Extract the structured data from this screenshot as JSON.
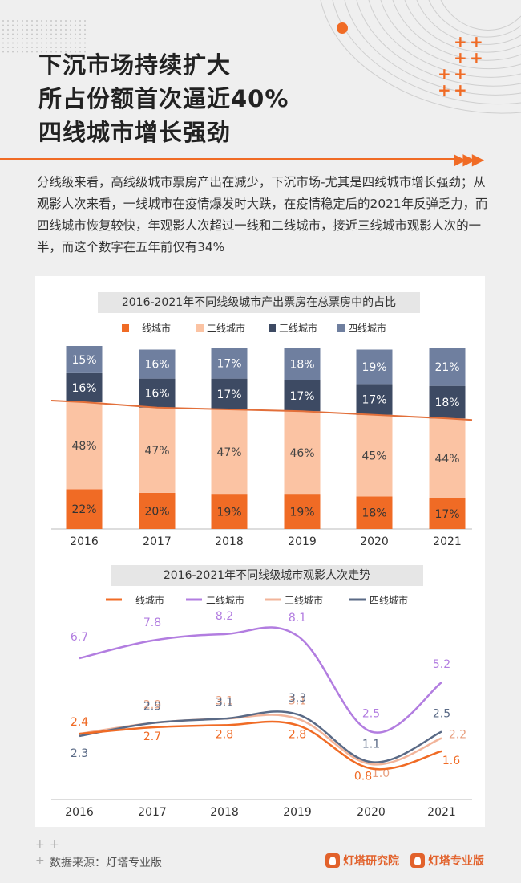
{
  "header": {
    "title_lines": [
      "下沉市场持续扩大",
      "所占份额首次逼近40%",
      "四线城市增长强劲"
    ]
  },
  "intro": {
    "text": "分线级来看，高线级城市票房产出在减少，下沉市场-尤其是四线城市增长强劲；从观影人次来看，一线城市在疫情爆发时大跌，在疫情稳定后的2021年反弹乏力，而四线城市恢复较快，年观影人次超过一线和二线城市，接近三线城市观影人次的一半，而这个数字在五年前仅有34%"
  },
  "colors": {
    "accent": "#f06b25",
    "tier1": "#f06b25",
    "tier2_bar": "#fbc3a3",
    "tier3_bar": "#3d4a63",
    "tier4_bar": "#6f7f9f",
    "tier2_line": "#b27de0",
    "tier3_line": "#f2b49a",
    "tier4_line": "#5a6a86",
    "divider_line": "#e26f3a"
  },
  "chart_data": [
    {
      "type": "bar",
      "stacked": true,
      "title": "2016-2021年不同线级城市产出票房在总票房中的占比",
      "categories": [
        "2016",
        "2017",
        "2018",
        "2019",
        "2020",
        "2021"
      ],
      "series": [
        {
          "name": "一线城市",
          "values": [
            22,
            20,
            19,
            19,
            18,
            17
          ],
          "color": "#f06b25"
        },
        {
          "name": "二线城市",
          "values": [
            48,
            47,
            47,
            46,
            45,
            44
          ],
          "color": "#fbc3a3"
        },
        {
          "name": "三线城市",
          "values": [
            16,
            16,
            17,
            17,
            17,
            18
          ],
          "color": "#3d4a63"
        },
        {
          "name": "四线城市",
          "values": [
            15,
            16,
            17,
            18,
            19,
            21
          ],
          "color": "#6f7f9f"
        }
      ],
      "value_suffix": "%",
      "ylim": [
        0,
        101
      ],
      "legend": "top",
      "annotation": "line connecting the top of the 二线城市 segments (一线+二线 share)"
    },
    {
      "type": "line",
      "title": "2016-2021年不同线级城市观影人次走势",
      "x": [
        "2016",
        "2017",
        "2018",
        "2019",
        "2020",
        "2021"
      ],
      "series": [
        {
          "name": "一线城市",
          "values": [
            2.4,
            2.7,
            2.8,
            2.8,
            0.8,
            1.6
          ],
          "color": "#f06b25"
        },
        {
          "name": "二线城市",
          "values": [
            6.7,
            7.8,
            8.2,
            8.1,
            2.5,
            5.2
          ],
          "color": "#b27de0"
        },
        {
          "name": "三线城市",
          "values": [
            2.4,
            2.9,
            3.1,
            3.1,
            1.0,
            2.2
          ],
          "color": "#f2b49a"
        },
        {
          "name": "四线城市",
          "values": [
            2.3,
            2.9,
            3.1,
            3.3,
            1.1,
            2.5
          ],
          "color": "#5a6a86"
        }
      ],
      "legend": "top",
      "smooth": true
    }
  ],
  "footer": {
    "source": "数据来源：灯塔专业版",
    "logo1": "灯塔研究院",
    "logo2": "灯塔专业版"
  }
}
